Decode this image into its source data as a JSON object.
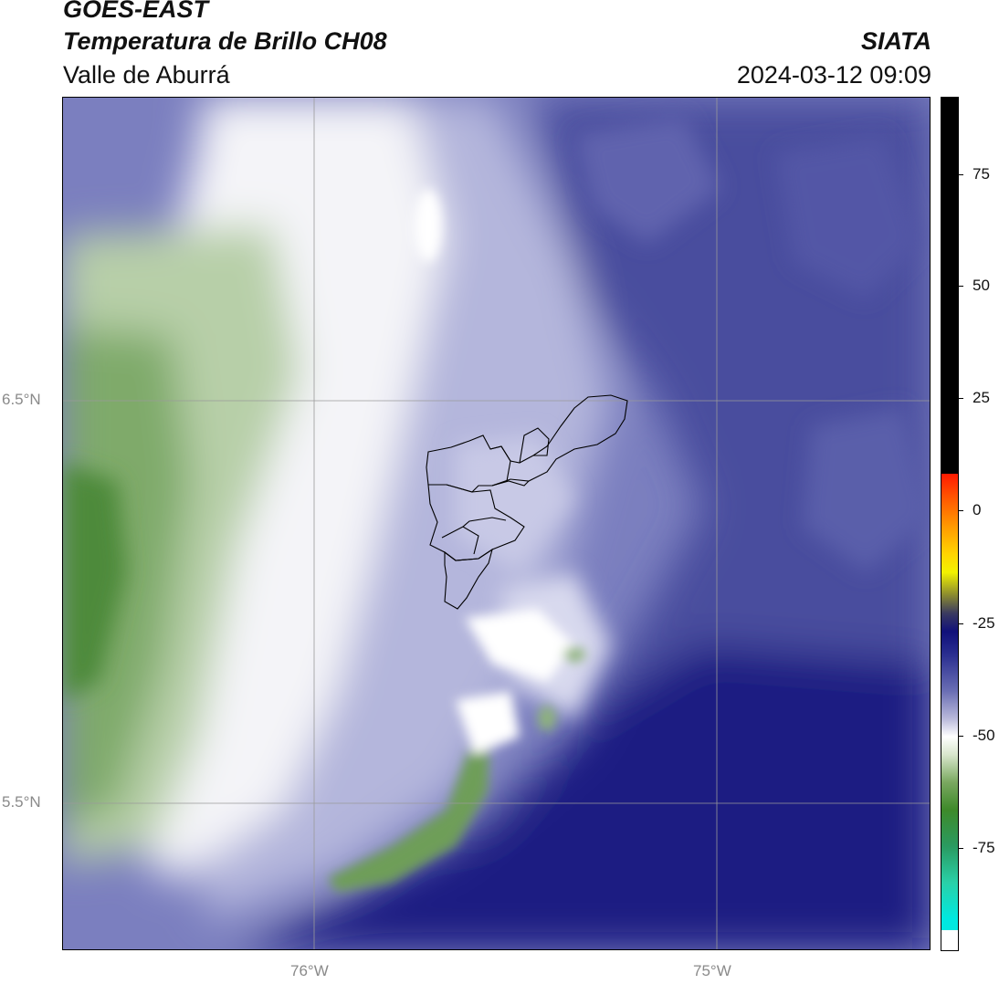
{
  "header": {
    "satellite": "GOES-EAST",
    "product": "Temperatura de Brillo CH08",
    "region": "Valle de Aburrá",
    "agency": "SIATA",
    "timestamp": "2024-03-12 09:09"
  },
  "map": {
    "lat_labels": [
      "6.5°N",
      "5.5°N"
    ],
    "lon_labels": [
      "76°W",
      "75°W"
    ],
    "gridline_color": "#9a9a9a",
    "boundary_color": "#000000"
  },
  "colorbar": {
    "ticks": [
      "75",
      "50",
      "25",
      "0",
      "-25",
      "-50",
      "-75"
    ],
    "range": [
      -95,
      92
    ],
    "colors": {
      "black": "#000000",
      "red": "#ff1a00",
      "orange": "#ff8c00",
      "yellow": "#f2f200",
      "olive": "#8a8a30",
      "navy": "#10107a",
      "indigo": "#3a3e98",
      "lavender": "#b8b8da",
      "white": "#ffffff",
      "light_green": "#d8e6cc",
      "green": "#3e8a2a",
      "teal": "#2ad0a8",
      "cyan": "#00e8e0"
    }
  }
}
